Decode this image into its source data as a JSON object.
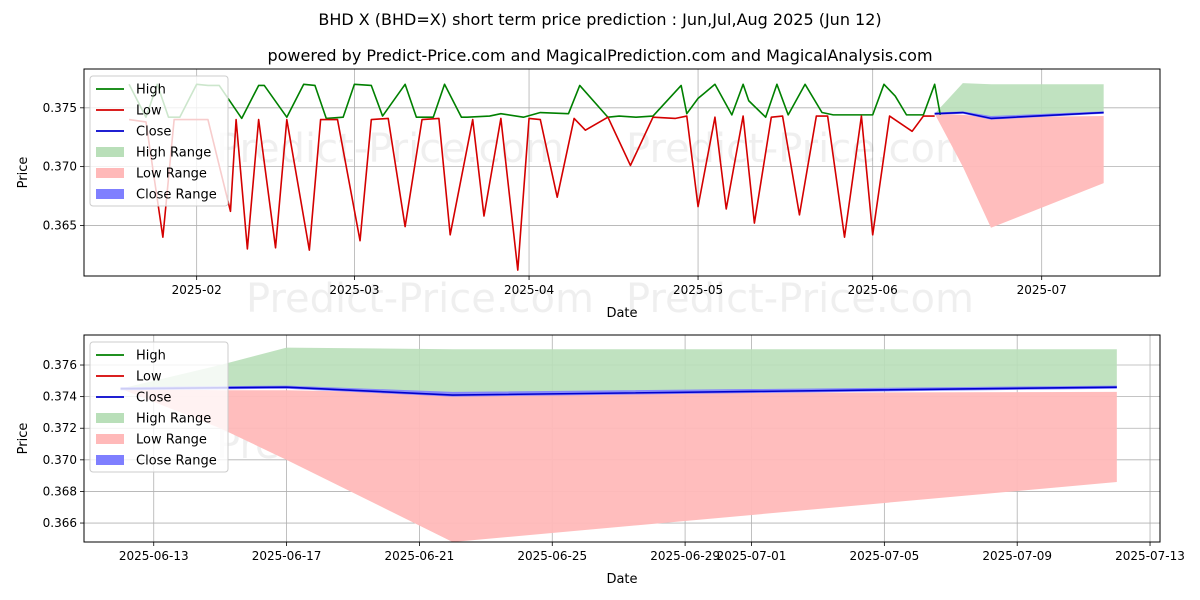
{
  "title": "BHD X (BHD=X) short term price prediction : Jun,Jul,Aug 2025 (Jun 12)",
  "subtitle": "powered by Predict-Price.com and MagicalPrediction.com and MagicalAnalysis.com",
  "watermarks": [
    "Predict-Price.com",
    "Predict-Price.com"
  ],
  "colors": {
    "high": "#008000",
    "low": "#d40000",
    "close": "#0000cc",
    "high_range": "#b9dfb9",
    "low_range": "#ffb9b9",
    "close_range": "#7f7fff"
  },
  "legend": [
    "High",
    "Low",
    "Close",
    "High Range",
    "Low Range",
    "Close Range"
  ],
  "chart_data": [
    {
      "type": "line",
      "panel": "top",
      "xlabel": "Date",
      "ylabel": "Price",
      "x_tick_labels": [
        "2025-02",
        "2025-03",
        "2025-04",
        "2025-05",
        "2025-06",
        "2025-07"
      ],
      "y_tick_labels": [
        "0.365",
        "0.370",
        "0.375"
      ],
      "xlim": [
        "2025-01-12",
        "2025-07-22"
      ],
      "ylim": [
        0.3607,
        0.3783
      ],
      "grid": true,
      "legend_position": "top-left",
      "series": [
        {
          "name": "High",
          "x": [
            "2025-01-20",
            "2025-01-23",
            "2025-01-25",
            "2025-01-27",
            "2025-01-29",
            "2025-02-01",
            "2025-02-03",
            "2025-02-05",
            "2025-02-09",
            "2025-02-12",
            "2025-02-13",
            "2025-02-17",
            "2025-02-20",
            "2025-02-22",
            "2025-02-24",
            "2025-02-27",
            "2025-03-01",
            "2025-03-04",
            "2025-03-06",
            "2025-03-10",
            "2025-03-12",
            "2025-03-15",
            "2025-03-17",
            "2025-03-20",
            "2025-03-21",
            "2025-03-25",
            "2025-03-27",
            "2025-03-31",
            "2025-04-03",
            "2025-04-08",
            "2025-04-10",
            "2025-04-15",
            "2025-04-17",
            "2025-04-20",
            "2025-04-23",
            "2025-04-28",
            "2025-04-29",
            "2025-05-01",
            "2025-05-02",
            "2025-05-04",
            "2025-05-07",
            "2025-05-09",
            "2025-05-10",
            "2025-05-13",
            "2025-05-15",
            "2025-05-17",
            "2025-05-20",
            "2025-05-23",
            "2025-05-25",
            "2025-05-29",
            "2025-06-01",
            "2025-06-03",
            "2025-06-05",
            "2025-06-07",
            "2025-06-10",
            "2025-06-12",
            "2025-06-13"
          ],
          "values": [
            0.377,
            0.3742,
            0.377,
            0.3742,
            0.3742,
            0.377,
            0.3769,
            0.3769,
            0.3741,
            0.3769,
            0.3769,
            0.3742,
            0.377,
            0.3769,
            0.3741,
            0.3742,
            0.377,
            0.3769,
            0.3743,
            0.377,
            0.3742,
            0.3742,
            0.377,
            0.3742,
            0.3742,
            0.3743,
            0.3745,
            0.3742,
            0.3746,
            0.3745,
            0.3769,
            0.3742,
            0.3743,
            0.3742,
            0.3743,
            0.3769,
            0.3745,
            0.3758,
            0.3762,
            0.377,
            0.3744,
            0.377,
            0.3756,
            0.3742,
            0.377,
            0.3744,
            0.377,
            0.3746,
            0.3744,
            0.3744,
            0.3744,
            0.377,
            0.376,
            0.3744,
            0.3744,
            0.377,
            0.3744
          ]
        },
        {
          "name": "Low",
          "x": [
            "2025-01-20",
            "2025-01-23",
            "2025-01-26",
            "2025-01-28",
            "2025-01-31",
            "2025-02-03",
            "2025-02-07",
            "2025-02-08",
            "2025-02-10",
            "2025-02-12",
            "2025-02-15",
            "2025-02-17",
            "2025-02-21",
            "2025-02-23",
            "2025-02-26",
            "2025-03-02",
            "2025-03-04",
            "2025-03-07",
            "2025-03-10",
            "2025-03-13",
            "2025-03-16",
            "2025-03-18",
            "2025-03-22",
            "2025-03-24",
            "2025-03-27",
            "2025-03-30",
            "2025-04-01",
            "2025-04-03",
            "2025-04-06",
            "2025-04-09",
            "2025-04-11",
            "2025-04-15",
            "2025-04-19",
            "2025-04-23",
            "2025-04-27",
            "2025-04-29",
            "2025-05-01",
            "2025-05-04",
            "2025-05-06",
            "2025-05-09",
            "2025-05-11",
            "2025-05-14",
            "2025-05-16",
            "2025-05-19",
            "2025-05-22",
            "2025-05-24",
            "2025-05-27",
            "2025-05-30",
            "2025-06-01",
            "2025-06-04",
            "2025-06-08",
            "2025-06-10",
            "2025-06-12"
          ],
          "values": [
            0.374,
            0.3738,
            0.364,
            0.374,
            0.374,
            0.374,
            0.3662,
            0.374,
            0.363,
            0.374,
            0.3631,
            0.374,
            0.3629,
            0.374,
            0.374,
            0.3637,
            0.374,
            0.3741,
            0.3649,
            0.374,
            0.3741,
            0.3642,
            0.374,
            0.3658,
            0.3741,
            0.3612,
            0.3741,
            0.374,
            0.3674,
            0.3741,
            0.3731,
            0.3742,
            0.3701,
            0.3742,
            0.3741,
            0.3743,
            0.3666,
            0.3742,
            0.3664,
            0.3743,
            0.3652,
            0.3742,
            0.3743,
            0.3659,
            0.3743,
            0.3743,
            0.364,
            0.3743,
            0.3642,
            0.3743,
            0.373,
            0.3743,
            0.3743
          ]
        },
        {
          "name": "Close",
          "x": [
            "2025-06-12",
            "2025-06-17",
            "2025-06-22",
            "2025-07-12"
          ],
          "values": [
            0.3745,
            0.3746,
            0.3741,
            0.3746
          ]
        }
      ],
      "ranges": [
        {
          "name": "High Range",
          "x": [
            "2025-06-12",
            "2025-06-17",
            "2025-06-22",
            "2025-07-12"
          ],
          "upper": [
            0.3745,
            0.3771,
            0.377,
            0.377
          ],
          "lower": [
            0.3745,
            0.3746,
            0.3742,
            0.3746
          ]
        },
        {
          "name": "Low Range",
          "x": [
            "2025-06-12",
            "2025-06-17",
            "2025-06-22",
            "2025-07-12"
          ],
          "upper": [
            0.3745,
            0.3744,
            0.3742,
            0.3743
          ],
          "lower": [
            0.3745,
            0.37,
            0.3648,
            0.3686
          ]
        },
        {
          "name": "Close Range",
          "x": [
            "2025-06-12",
            "2025-06-17",
            "2025-06-22",
            "2025-07-12"
          ],
          "upper": [
            0.3746,
            0.3747,
            0.3743,
            0.3747
          ],
          "lower": [
            0.3744,
            0.3745,
            0.374,
            0.3745
          ]
        }
      ]
    },
    {
      "type": "line",
      "panel": "bottom",
      "xlabel": "Date",
      "ylabel": "Price",
      "x_tick_labels": [
        "2025-06-13",
        "2025-06-17",
        "2025-06-21",
        "2025-06-25",
        "2025-06-29",
        "2025-07-01",
        "2025-07-05",
        "2025-07-09",
        "2025-07-13"
      ],
      "y_tick_labels": [
        "0.366",
        "0.368",
        "0.370",
        "0.372",
        "0.374",
        "0.376"
      ],
      "xlim": [
        "2025-06-10.9",
        "2025-07-13.3"
      ],
      "ylim": [
        0.3648,
        0.3779
      ],
      "grid": true,
      "legend_position": "top-left",
      "series": [
        {
          "name": "High",
          "x": [],
          "values": []
        },
        {
          "name": "Low",
          "x": [],
          "values": []
        },
        {
          "name": "Close",
          "x": [
            "2025-06-12",
            "2025-06-17",
            "2025-06-22",
            "2025-07-12"
          ],
          "values": [
            0.3745,
            0.3746,
            0.3741,
            0.3746
          ]
        }
      ],
      "ranges": [
        {
          "name": "High Range",
          "x": [
            "2025-06-12",
            "2025-06-15",
            "2025-06-17",
            "2025-06-22",
            "2025-07-12"
          ],
          "upper": [
            0.3745,
            0.376,
            0.3771,
            0.377,
            0.377
          ],
          "lower": [
            0.3745,
            0.3745,
            0.3746,
            0.3742,
            0.3746
          ]
        },
        {
          "name": "Low Range",
          "x": [
            "2025-06-12",
            "2025-06-15",
            "2025-06-17",
            "2025-06-22",
            "2025-07-12"
          ],
          "upper": [
            0.3745,
            0.3744,
            0.3744,
            0.3742,
            0.3743
          ],
          "lower": [
            0.3745,
            0.372,
            0.37,
            0.3648,
            0.3686
          ]
        },
        {
          "name": "Close Range",
          "x": [
            "2025-06-12",
            "2025-06-17",
            "2025-06-22",
            "2025-07-12"
          ],
          "upper": [
            0.3746,
            0.3747,
            0.3743,
            0.3747
          ],
          "lower": [
            0.3744,
            0.3745,
            0.374,
            0.3745
          ]
        }
      ]
    }
  ]
}
